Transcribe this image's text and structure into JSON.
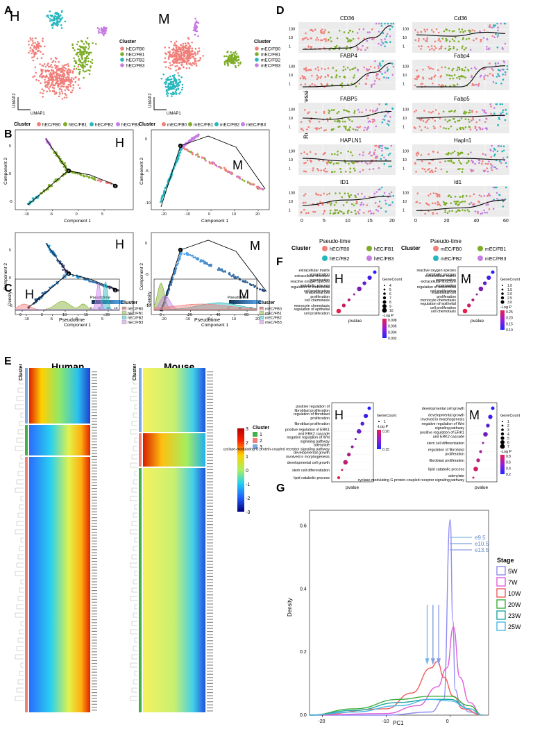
{
  "panels": {
    "A": {
      "letter": "A",
      "human_tag": "H",
      "mouse_tag": "M",
      "xlabel": "UMAP1",
      "ylabel": "UMAP2",
      "legend_title": "Cluster",
      "human_legend": [
        "hEC/FB0",
        "hEC/FB1",
        "hEC/FB2",
        "hEC/FB3"
      ],
      "mouse_legend": [
        "mEC/FB0",
        "mEC/FB1",
        "mEC/FB2",
        "mEC/FB3"
      ]
    },
    "B": {
      "letter": "B",
      "legend_title": "Cluster",
      "human_tag": "H",
      "mouse_tag": "M",
      "xlabel": "Component 1",
      "ylabel": "Component 2",
      "pseudotime_label": "Pseudotime",
      "human_legend": [
        "hEC/FB0",
        "hEC/FB1",
        "hEC/FB2",
        "hEC/FB3"
      ],
      "mouse_legend": [
        "mEC/FB0",
        "mEC/FB1",
        "mEC/FB2",
        "mEC/FB3"
      ],
      "human_xticks": [
        "-10",
        "-5",
        "0",
        "5"
      ],
      "mouse_xticks": [
        "-20",
        "-10",
        "0",
        "10",
        "20"
      ],
      "human_yticks": [
        "5",
        "0",
        "-5"
      ],
      "mouse_yticks": [
        "0",
        "-5",
        "-10"
      ],
      "human_pt_ticks": [
        "0",
        "5",
        "10",
        "15",
        "20"
      ],
      "mouse_pt_ticks": [
        "0",
        "20",
        "40",
        "60"
      ],
      "node_labels": [
        "1",
        "2",
        "3"
      ]
    },
    "C": {
      "letter": "C",
      "human_tag": "H",
      "mouse_tag": "M",
      "xlabel": "Pseudotime",
      "ylabel": "Density",
      "legend_title": "Cluster",
      "human_legend": [
        "hEC/FB0",
        "hEC/FB1",
        "hEC/FB2",
        "hEC/FB3"
      ],
      "mouse_legend": [
        "mEC/FB0",
        "mEC/FB1",
        "mEC/FB2",
        "mEC/FB3"
      ],
      "human_xticks": [
        "0",
        "5",
        "10",
        "15",
        "20"
      ],
      "mouse_xticks": [
        "0",
        "20",
        "40",
        "60"
      ]
    },
    "D": {
      "letter": "D",
      "ylabel": "Relative Expression",
      "xlabel": "Pseudo-time",
      "legend_title": "Cluster",
      "human_genes": [
        "CD36",
        "FABP4",
        "FABP5",
        "HAPLN1",
        "ID1"
      ],
      "mouse_genes": [
        "Cd36",
        "Fabp4",
        "Fabp5",
        "Hapln1",
        "Id1"
      ],
      "human_legend": [
        "hEC/FB0",
        "hEC/FB1",
        "hEC/FB2",
        "hEC/FB3"
      ],
      "mouse_legend": [
        "mEC/FB0",
        "mEC/FB1",
        "mEC/FB2",
        "mEC/FB3"
      ],
      "yticks": [
        "1000",
        "100",
        "10",
        "1"
      ],
      "human_xticks": [
        "0",
        "5",
        "10",
        "15",
        "20"
      ],
      "mouse_xticks": [
        "0",
        "20",
        "40",
        "60"
      ]
    },
    "E": {
      "letter": "E",
      "cluster_label": "Cluster",
      "human_title": "Human",
      "mouse_title": "Mouse",
      "legend_title": "Cluster",
      "legend_items": [
        "1",
        "2",
        "3"
      ],
      "scale_ticks": [
        "3",
        "2",
        "1",
        "0",
        "-1",
        "-2",
        "-3"
      ]
    },
    "F": {
      "letter": "F",
      "xlabel": "pvalue",
      "gene_count_label": "GeneCount",
      "logp_label": "-Log P",
      "tl_tag": "H",
      "tr_tag": "M",
      "bl_tag": "H",
      "br_tag": "M",
      "tl_terms": [
        "extracellular matrix organization",
        "extracellular structure organization",
        "reactive oxygen species metabolic process",
        "regulation of endothelial cell proliferation",
        "endothelial cell proliferation",
        "cell chemotaxis",
        "monocyte chemotaxis",
        "regulation of epithelial cell proliferation"
      ],
      "tr_terms": [
        "reactive oxygen species metabolic process",
        "extracellular matrix organization",
        "extracellular structure organization",
        "regulation of endothelial cell proliferation",
        "endothelial cell proliferation",
        "monocyte chemotaxis",
        "regulation of epithelial cell proliferation",
        "cell chemotaxis"
      ],
      "bl_terms": [
        "positive regulation of fibroblast proliferation",
        "regulation of fibroblast proliferation",
        "fibroblast proliferation",
        "positive regulation of ERK1 and ERK2 cascade",
        "negative regulation of Wnt signaling pathway",
        "adenylate cyclase-modulating G protein-coupled receptor signaling pathway",
        "developmental growth involved in morphogenesis",
        "developmental cell growth",
        "stem cell differentiation",
        "lipid catabolic process"
      ],
      "br_terms": [
        "developmental cell growth",
        "developmental growth involved in morphogenesis",
        "negative regulation of Wnt signaling pathway",
        "positive regulation of ERK1 and ERK2 cascade",
        "stem cell differentiation",
        "regulation of fibroblast proliferation",
        "fibroblast proliferation",
        "lipid catabolic process",
        "adenylate cyclase-modulating G protein-coupled receptor signaling pathway"
      ],
      "tl_gc_ticks": [
        "4",
        "5",
        "6",
        "7",
        "8",
        "9",
        "10"
      ],
      "tl_lp_ticks": [
        "0.008",
        "0.006",
        "0.004",
        "0.002"
      ],
      "tr_gc_ticks": [
        "1.0",
        "1.5",
        "2.0",
        "2.5",
        "3.0"
      ],
      "tr_lp_ticks": [
        "0.25",
        "0.20",
        "0.15",
        "0.10"
      ],
      "bl_gc_ticks": [
        "1"
      ],
      "bl_lp_ticks": [
        "0.20",
        "0.15"
      ],
      "br_gc_ticks": [
        "1",
        "2",
        "3",
        "4",
        "5",
        "6",
        "7"
      ],
      "br_lp_ticks": [
        "0.8",
        "0.6",
        "0.4",
        "0.2"
      ]
    },
    "G": {
      "letter": "G",
      "legend_title": "Stage",
      "stages": [
        "5W",
        "7W",
        "10W",
        "20W",
        "23W",
        "25W"
      ],
      "arrow_labels": [
        "e9.5",
        "e10.5",
        "e13.5"
      ],
      "xlabel": "PC1",
      "ylabel": "Density",
      "xticks": [
        "-20",
        "-10",
        "0"
      ],
      "yticks": [
        "0.6",
        "0.4",
        "0.2",
        "0.0"
      ]
    }
  },
  "colors": {
    "c0": "#f07f7a",
    "c1": "#7fad2a",
    "c2": "#26b6bd",
    "c3": "#c77ce4",
    "s5": "#8f8cf0",
    "s7": "#e15bdc",
    "s10": "#f05a5a",
    "s20": "#3aae3a",
    "s23": "#22a6a0",
    "s25": "#45b8e6"
  },
  "chart_data": [
    {
      "type": "line",
      "title": "G",
      "xlabel": "PC1",
      "ylabel": "Density",
      "xlim": [
        -22,
        6
      ],
      "ylim": [
        0,
        0.65
      ],
      "series": [
        {
          "name": "5W",
          "x": [
            -22,
            -10,
            -3,
            -1,
            0,
            0.4,
            0.8,
            1.5,
            3,
            5
          ],
          "values": [
            0,
            0,
            0.01,
            0.05,
            0.62,
            0.3,
            0.08,
            0.04,
            0.01,
            0
          ]
        },
        {
          "name": "7W",
          "x": [
            -22,
            -10,
            -5,
            -2,
            -0.5,
            0.5,
            1.5,
            3,
            5
          ],
          "values": [
            0,
            0.005,
            0.03,
            0.09,
            0.15,
            0.28,
            0.12,
            0.04,
            0
          ]
        },
        {
          "name": "10W",
          "x": [
            -22,
            -10,
            -6,
            -3,
            -2,
            -1,
            0.5,
            2,
            5
          ],
          "values": [
            0,
            0.02,
            0.07,
            0.15,
            0.17,
            0.12,
            0.06,
            0.02,
            0
          ]
        },
        {
          "name": "20W",
          "x": [
            -22,
            -15,
            -8,
            -3,
            0,
            3,
            5
          ],
          "values": [
            0,
            0.02,
            0.05,
            0.06,
            0.06,
            0.03,
            0
          ]
        },
        {
          "name": "23W",
          "x": [
            -22,
            -15,
            -8,
            -3,
            0,
            3,
            5
          ],
          "values": [
            0,
            0.015,
            0.04,
            0.05,
            0.05,
            0.02,
            0
          ]
        },
        {
          "name": "25W",
          "x": [
            -22,
            -15,
            -8,
            -3,
            0,
            3,
            5
          ],
          "values": [
            0,
            0.01,
            0.03,
            0.05,
            0.045,
            0.02,
            0
          ]
        }
      ]
    }
  ]
}
